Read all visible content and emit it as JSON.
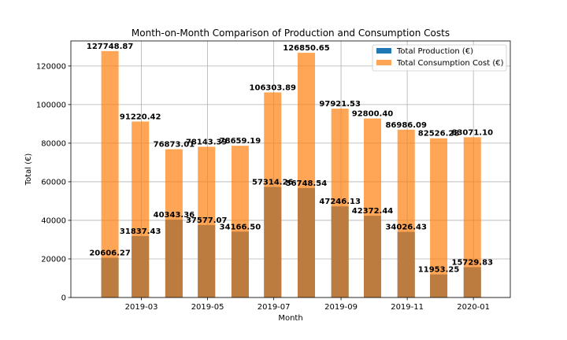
{
  "chart_data": {
    "type": "bar",
    "title": "Month-on-Month Comparison of Production and Consumption Costs",
    "xlabel": "Month",
    "ylabel": "Total (€)",
    "ylim": [
      0,
      133000
    ],
    "xlim": [
      "2018-12-26",
      "2020-02-04"
    ],
    "grid": true,
    "legend_position": "top-right",
    "yticks": [
      0,
      20000,
      40000,
      60000,
      80000,
      100000,
      120000
    ],
    "xticks": [
      {
        "date": "2019-03-01",
        "label": "2019-03"
      },
      {
        "date": "2019-05-01",
        "label": "2019-05"
      },
      {
        "date": "2019-07-01",
        "label": "2019-07"
      },
      {
        "date": "2019-09-01",
        "label": "2019-09"
      },
      {
        "date": "2019-11-01",
        "label": "2019-11"
      },
      {
        "date": "2020-01-01",
        "label": "2020-01"
      }
    ],
    "dates": [
      "2019-01-31",
      "2019-02-28",
      "2019-03-31",
      "2019-04-30",
      "2019-05-31",
      "2019-06-30",
      "2019-07-31",
      "2019-08-31",
      "2019-09-30",
      "2019-10-31",
      "2019-11-30",
      "2019-12-31"
    ],
    "series": [
      {
        "name": "Total Production (€)",
        "color": "#1f77b4",
        "values": [
          20606.27,
          31837.43,
          40343.36,
          37577.07,
          34166.5,
          57314.26,
          56748.54,
          47246.13,
          42372.44,
          34026.43,
          11953.25,
          15729.83
        ],
        "labels": [
          "20606.27",
          "31837.43",
          "40343.36",
          "37577.07",
          "34166.50",
          "57314.26",
          "56748.54",
          "47246.13",
          "42372.44",
          "34026.43",
          "11953.25",
          "15729.83"
        ]
      },
      {
        "name": "Total Consumption Cost (€)",
        "color": "#ff7f0e",
        "alpha": 0.7,
        "values": [
          127748.87,
          91220.42,
          76873.01,
          78143.39,
          78659.19,
          106303.89,
          126850.65,
          97921.53,
          92800.4,
          86986.09,
          82526.28,
          83071.1
        ],
        "labels": [
          "127748.87",
          "91220.42",
          "76873.01",
          "78143.39",
          "78659.19",
          "106303.89",
          "126850.65",
          "97921.53",
          "92800.40",
          "86986.09",
          "82526.28",
          "83071.10"
        ]
      }
    ]
  }
}
